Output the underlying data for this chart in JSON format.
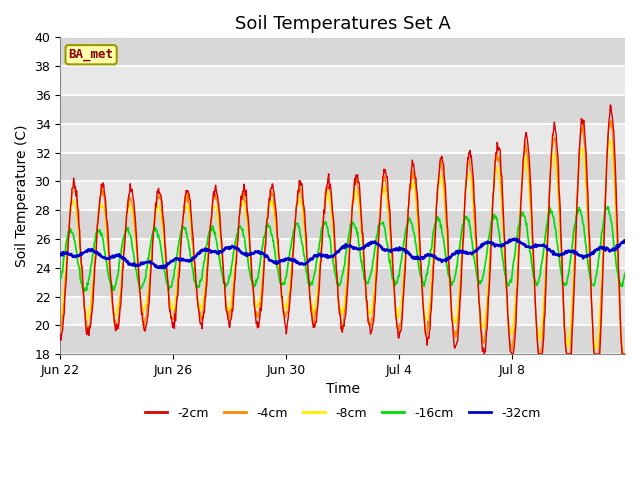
{
  "title": "Soil Temperatures Set A",
  "xlabel": "Time",
  "ylabel": "Soil Temperature (C)",
  "ylim": [
    18,
    40
  ],
  "yticks": [
    18,
    20,
    22,
    24,
    26,
    28,
    30,
    32,
    34,
    36,
    38,
    40
  ],
  "annotation_text": "BA_met",
  "line_colors": {
    "-2cm": "#dd0000",
    "-4cm": "#ff8800",
    "-8cm": "#ffee00",
    "-16cm": "#00dd00",
    "-32cm": "#0000cc"
  },
  "legend_labels": [
    "-2cm",
    "-4cm",
    "-8cm",
    "-16cm",
    "-32cm"
  ],
  "n_days": 20,
  "samples_per_day": 48,
  "background_color": "#ffffff",
  "plot_bg_color": "#e8e8e8",
  "grid_color": "#ffffff",
  "title_fontsize": 13,
  "axis_fontsize": 10,
  "tick_fontsize": 9,
  "xtick_labels": [
    "Jun 22",
    "Jun 26",
    "Jun 30",
    "Jul 4",
    "Jul 8"
  ],
  "xtick_positions": [
    0,
    4,
    8,
    12,
    16
  ]
}
